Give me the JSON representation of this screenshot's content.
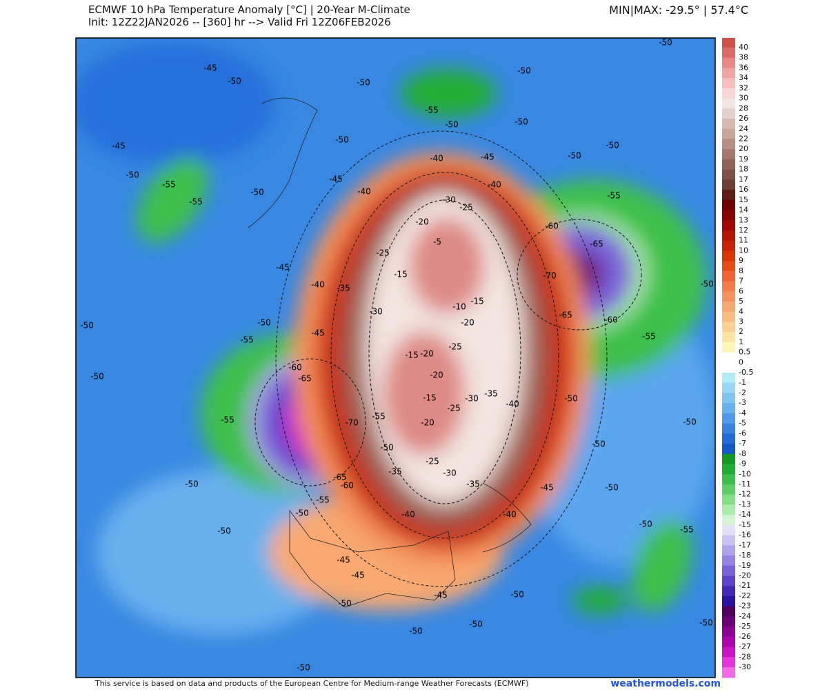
{
  "header": {
    "title": "ECMWF 10 hPa Temperature Anomaly [°C] | 20-Year M-Climate",
    "subtitle": "Init: 12Z22JAN2026 -- [360] hr --> Valid Fri 12Z06FEB2026",
    "minmax": "MIN|MAX: -29.5° | 57.4°C"
  },
  "legend": {
    "labels": [
      "40",
      "38",
      "36",
      "34",
      "32",
      "30",
      "28",
      "26",
      "24",
      "22",
      "20",
      "19",
      "18",
      "17",
      "16",
      "15",
      "14",
      "13",
      "12",
      "11",
      "10",
      "9",
      "8",
      "7",
      "6",
      "5",
      "4",
      "3",
      "2",
      "1",
      "0.5",
      "0",
      "-0.5",
      "-1",
      "-2",
      "-3",
      "-4",
      "-5",
      "-6",
      "-7",
      "-8",
      "-9",
      "-10",
      "-11",
      "-12",
      "-13",
      "-14",
      "-15",
      "-16",
      "-17",
      "-18",
      "-19",
      "-20",
      "-21",
      "-22",
      "-23",
      "-24",
      "-25",
      "-26",
      "-27",
      "-28",
      "-30"
    ],
    "colors": [
      "#d24f4a",
      "#de6a68",
      "#e88886",
      "#f0a4a2",
      "#f4bebc",
      "#f7d6d4",
      "#f2e6e2",
      "#e4d0ca",
      "#d6bab0",
      "#c6a498",
      "#b68e82",
      "#a4786c",
      "#926458",
      "#7e5046",
      "#6c3e36",
      "#5e1c14",
      "#6e0000",
      "#880000",
      "#a00800",
      "#b41400",
      "#c82200",
      "#dc3400",
      "#e84c14",
      "#f06434",
      "#f47c4c",
      "#f69260",
      "#f8a870",
      "#fabc80",
      "#fcd090",
      "#fde4a2",
      "#fef6b6",
      "#ffffff",
      "#ffffff",
      "#b0ecf8",
      "#98d8f6",
      "#80c4f2",
      "#68b0ee",
      "#509ae8",
      "#3882e0",
      "#226cd6",
      "#1458c8",
      "#129a22",
      "#22ae34",
      "#3cc04c",
      "#5cd066",
      "#84de86",
      "#acecaa",
      "#d4f4d2",
      "#e2e0f8",
      "#cac2f4",
      "#b0a2ec",
      "#9682e4",
      "#7a62d8",
      "#5e44cc",
      "#4428b6",
      "#2c12a0",
      "#520060",
      "#6c0078",
      "#8a0092",
      "#aa04aa",
      "#c814c4",
      "#e234da",
      "#f46ae8"
    ]
  },
  "contour_labels": [
    "-45",
    "-50",
    "-45",
    "-50",
    "-55",
    "-55",
    "-50",
    "-45",
    "-40",
    "-35",
    "-50",
    "-50",
    "-55",
    "-45",
    "-50",
    "-60",
    "-65",
    "-55",
    "-50",
    "-50",
    "-50",
    "-45",
    "-45",
    "-45",
    "-50",
    "-50",
    "-50",
    "-50",
    "-50",
    "-50",
    "-50",
    "-55",
    "-50",
    "-45",
    "-40",
    "-50",
    "-50",
    "-50",
    "-55",
    "-60",
    "-65",
    "-70",
    "-65",
    "-60",
    "-55",
    "-50",
    "-50",
    "-50",
    "-50",
    "-50",
    "-50",
    "-50",
    "-55",
    "-50",
    "-50",
    "-45",
    "-40",
    "-40",
    "-45",
    "-40",
    "-30",
    "-25",
    "-20",
    "-5",
    "-15",
    "-10",
    "-15",
    "-20",
    "-25",
    "-15",
    "-20",
    "-20",
    "-30",
    "-35",
    "-40",
    "-15",
    "-25",
    "-20",
    "-25",
    "-30",
    "-35",
    "-35",
    "-50",
    "-40",
    "-70",
    "-55",
    "-65",
    "-55",
    "-60",
    "-25",
    "-30"
  ],
  "footer": {
    "credit": "This service is based on data and products of the European Centre for Medium-range Weather Forecasts (ECMWF)",
    "site": "weathermodels.com"
  }
}
